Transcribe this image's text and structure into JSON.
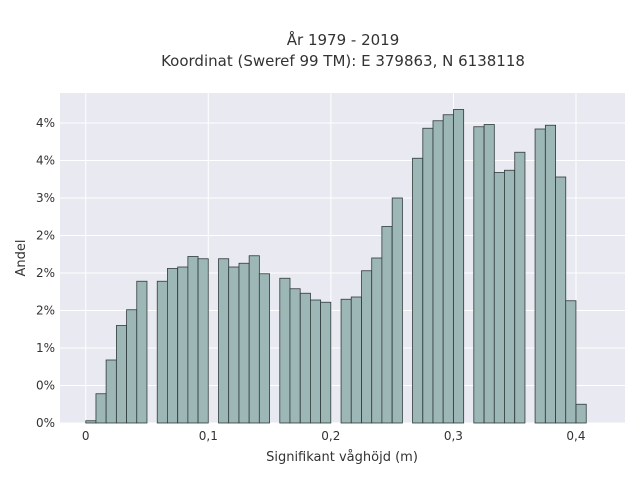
{
  "chart_data": {
    "type": "bar",
    "title": "År 1979 - 2019",
    "subtitle": "Koordinat (Sweref 99 TM): E 379863, N 6138118",
    "xlabel": "Signifikant våghöjd (m)",
    "ylabel": "Andel",
    "xlim": [
      -0.021,
      0.44
    ],
    "ylim": [
      0,
      4.4
    ],
    "grid": true,
    "x_ticks": [
      {
        "value": 0,
        "label": "0"
      },
      {
        "value": 0.1,
        "label": "0,1"
      },
      {
        "value": 0.2,
        "label": "0,2"
      },
      {
        "value": 0.3,
        "label": "0,3"
      },
      {
        "value": 0.4,
        "label": "0,4"
      }
    ],
    "y_ticks": [
      {
        "value": 0,
        "label": "0%"
      },
      {
        "value": 0.5,
        "label": "0%"
      },
      {
        "value": 1.0,
        "label": "1%"
      },
      {
        "value": 1.5,
        "label": "2%"
      },
      {
        "value": 2.0,
        "label": "2%"
      },
      {
        "value": 2.5,
        "label": "2%"
      },
      {
        "value": 3.0,
        "label": "3%"
      },
      {
        "value": 3.5,
        "label": "4%"
      },
      {
        "value": 4.0,
        "label": "4%"
      }
    ],
    "bin_width": 0.00833,
    "x": [
      0.0042,
      0.0125,
      0.0208,
      0.0292,
      0.0375,
      0.0458,
      0.0542,
      0.0625,
      0.0708,
      0.0792,
      0.0875,
      0.0958,
      0.1042,
      0.1125,
      0.1208,
      0.1292,
      0.1375,
      0.1458,
      0.1542,
      0.1625,
      0.1708,
      0.1792,
      0.1875,
      0.1958,
      0.2042,
      0.2125,
      0.2208,
      0.2292,
      0.2375,
      0.2458,
      0.2542,
      0.2625,
      0.2708,
      0.2792,
      0.2875,
      0.2958,
      0.3042,
      0.3125,
      0.3208,
      0.3292,
      0.3375,
      0.3458,
      0.3542,
      0.3625,
      0.3708,
      0.3792,
      0.3875,
      0.3958,
      0.4042,
      0.4125,
      0.4208
    ],
    "values": [
      0.03,
      0.39,
      0.84,
      1.3,
      1.51,
      1.89,
      0,
      1.89,
      2.06,
      2.08,
      2.22,
      2.19,
      0,
      2.19,
      2.08,
      2.13,
      2.23,
      1.99,
      0,
      1.93,
      1.79,
      1.73,
      1.64,
      1.61,
      0,
      1.65,
      1.68,
      2.03,
      2.2,
      2.62,
      3.0,
      0,
      3.53,
      3.93,
      4.03,
      4.11,
      4.18,
      0,
      3.95,
      3.98,
      3.34,
      3.37,
      3.61,
      0,
      3.92,
      3.97,
      3.28,
      1.63,
      0.25,
      0,
      0
    ]
  }
}
